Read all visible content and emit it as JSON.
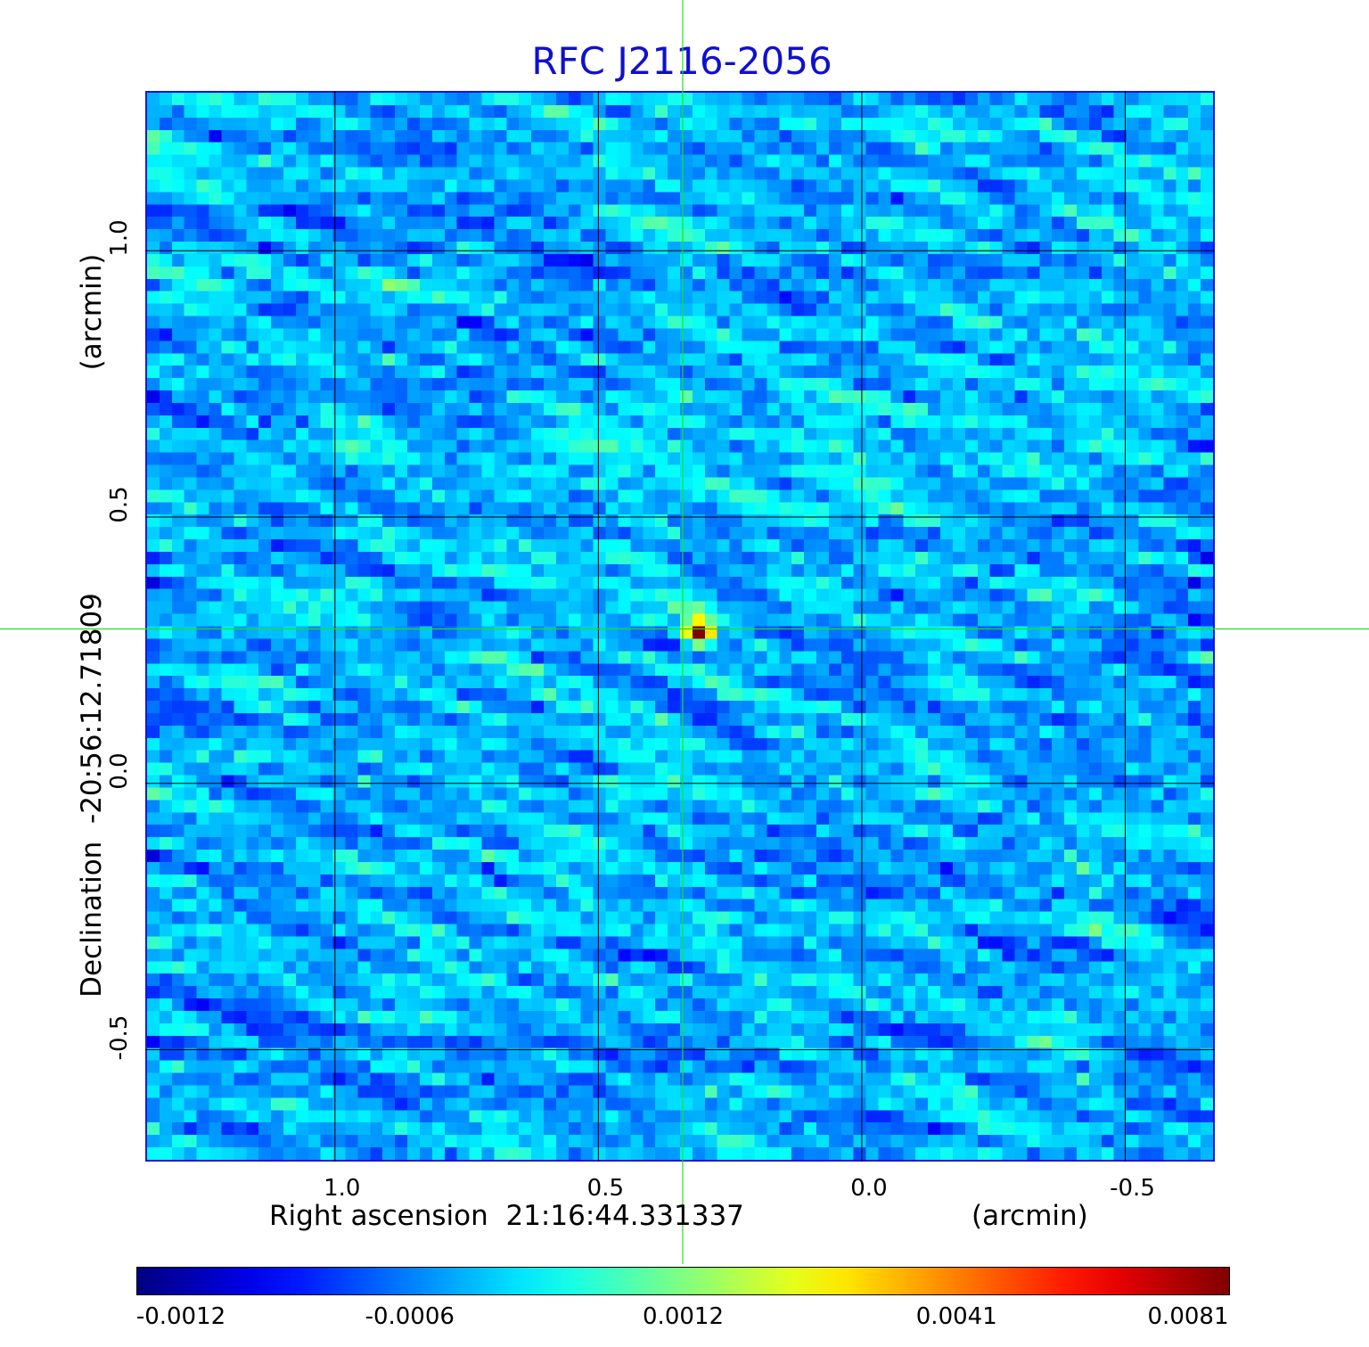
{
  "title": "RFC J2116-2056",
  "chart_data": {
    "type": "heatmap",
    "title": "RFC J2116-2056",
    "xlabel": "Right ascension  21:16:44.331337",
    "xunit": "(arcmin)",
    "ylabel": "Declination  -20:56:12.71809",
    "yunit": "(arcmin)",
    "x_ticks": [
      "1.0",
      "0.5",
      "0.0",
      "-0.5"
    ],
    "y_ticks": [
      "1.0",
      "0.5",
      "0.0",
      "-0.5"
    ],
    "x_tick_values": [
      1.0,
      0.5,
      0.0,
      -0.5
    ],
    "y_tick_values": [
      1.0,
      0.5,
      0.0,
      -0.5
    ],
    "xlim": [
      1.36,
      -0.67
    ],
    "ylim": [
      -0.71,
      1.3
    ],
    "grid": true,
    "crosshair": {
      "x": 0.34,
      "y": 0.29
    },
    "source_peak": {
      "x": 0.33,
      "y": 0.29
    },
    "colorbar": {
      "colormap": "jet",
      "tick_labels": [
        "-0.0012",
        "-0.0006",
        "0.0012",
        "0.0041",
        "0.0081"
      ],
      "range": [
        -0.0012,
        0.0081
      ],
      "orientation": "horizontal"
    }
  },
  "colors": {
    "title": "#1010d0",
    "frame": "#1515d8",
    "crosshair": "#22dd22",
    "grid": "#000000",
    "background_map": "#2ee6f0"
  }
}
